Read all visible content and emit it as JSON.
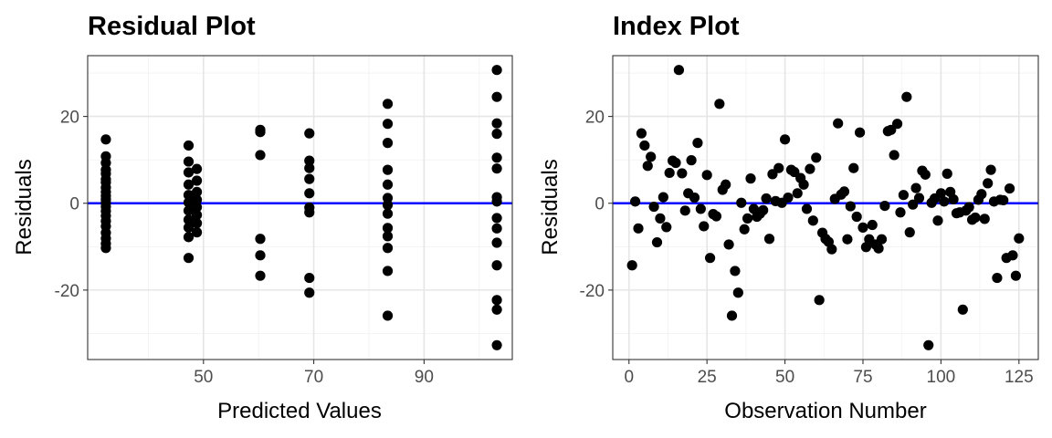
{
  "chart_data": [
    {
      "type": "scatter",
      "title": "Residual Plot",
      "xlabel": "Predicted Values",
      "ylabel": "Residuals",
      "xlim": [
        29,
        106
      ],
      "ylim": [
        -36,
        34
      ],
      "xticks": [
        50,
        70,
        90
      ],
      "yticks": [
        -20,
        0,
        20
      ],
      "xtick_labels": [
        "50",
        "70",
        "90"
      ],
      "ytick_labels": [
        "-20",
        "0",
        "20"
      ],
      "grid": true,
      "reference_line": {
        "y": 0,
        "color": "#0000ff"
      },
      "point_color": "#000000",
      "points": [
        {
          "x": 32.3,
          "y": 14.7
        },
        {
          "x": 32.3,
          "y": 10.8
        },
        {
          "x": 32.3,
          "y": 9.3
        },
        {
          "x": 32.3,
          "y": 7.7
        },
        {
          "x": 32.3,
          "y": 6.8
        },
        {
          "x": 32.3,
          "y": 5.5
        },
        {
          "x": 32.3,
          "y": 4.8
        },
        {
          "x": 32.3,
          "y": 3.6
        },
        {
          "x": 32.3,
          "y": 2.6
        },
        {
          "x": 32.3,
          "y": 1.7
        },
        {
          "x": 32.3,
          "y": 0.9
        },
        {
          "x": 32.3,
          "y": 0.1
        },
        {
          "x": 32.3,
          "y": -0.8
        },
        {
          "x": 32.3,
          "y": -1.8
        },
        {
          "x": 32.3,
          "y": -2.9
        },
        {
          "x": 32.3,
          "y": -4.1
        },
        {
          "x": 32.3,
          "y": -5.3
        },
        {
          "x": 32.3,
          "y": -6.8
        },
        {
          "x": 32.3,
          "y": -8.1
        },
        {
          "x": 32.3,
          "y": -9.3
        },
        {
          "x": 32.3,
          "y": -10.3
        },
        {
          "x": 47.3,
          "y": 13.3
        },
        {
          "x": 47.3,
          "y": 9.6
        },
        {
          "x": 47.3,
          "y": 7.1
        },
        {
          "x": 47.3,
          "y": 4.3
        },
        {
          "x": 47.3,
          "y": 1.9
        },
        {
          "x": 47.3,
          "y": 0.2
        },
        {
          "x": 47.3,
          "y": -1.7
        },
        {
          "x": 47.3,
          "y": -3.8
        },
        {
          "x": 47.3,
          "y": -5.6
        },
        {
          "x": 47.3,
          "y": -7.8
        },
        {
          "x": 47.3,
          "y": -12.6
        },
        {
          "x": 48.8,
          "y": 7.9
        },
        {
          "x": 48.8,
          "y": 5.2
        },
        {
          "x": 48.8,
          "y": 2.6
        },
        {
          "x": 48.8,
          "y": 0.8
        },
        {
          "x": 48.8,
          "y": -0.9
        },
        {
          "x": 48.8,
          "y": -2.7
        },
        {
          "x": 48.8,
          "y": -4.6
        },
        {
          "x": 48.8,
          "y": -6.7
        },
        {
          "x": 60.3,
          "y": 16.9
        },
        {
          "x": 60.3,
          "y": 16.4
        },
        {
          "x": 60.3,
          "y": 11.1
        },
        {
          "x": 60.3,
          "y": -8.2
        },
        {
          "x": 60.3,
          "y": -12.0
        },
        {
          "x": 60.3,
          "y": -16.7
        },
        {
          "x": 69.2,
          "y": 16.1
        },
        {
          "x": 69.2,
          "y": 9.8
        },
        {
          "x": 69.2,
          "y": 8.1
        },
        {
          "x": 69.2,
          "y": 5.6
        },
        {
          "x": 69.2,
          "y": 2.3
        },
        {
          "x": 69.2,
          "y": -1.0
        },
        {
          "x": 69.2,
          "y": -2.1
        },
        {
          "x": 69.2,
          "y": -17.2
        },
        {
          "x": 69.2,
          "y": -20.6
        },
        {
          "x": 83.4,
          "y": 22.9
        },
        {
          "x": 83.4,
          "y": 18.3
        },
        {
          "x": 83.4,
          "y": 13.9
        },
        {
          "x": 83.4,
          "y": 7.7
        },
        {
          "x": 83.4,
          "y": 4.3
        },
        {
          "x": 83.4,
          "y": 1.2
        },
        {
          "x": 83.4,
          "y": -0.4
        },
        {
          "x": 83.4,
          "y": -2.4
        },
        {
          "x": 83.4,
          "y": -5.7
        },
        {
          "x": 83.4,
          "y": -7.6
        },
        {
          "x": 83.4,
          "y": -10.3
        },
        {
          "x": 83.4,
          "y": -15.6
        },
        {
          "x": 83.4,
          "y": -25.9
        },
        {
          "x": 103.2,
          "y": 30.7
        },
        {
          "x": 103.2,
          "y": 24.5
        },
        {
          "x": 103.2,
          "y": 18.4
        },
        {
          "x": 103.2,
          "y": 16.0
        },
        {
          "x": 103.2,
          "y": 10.5
        },
        {
          "x": 103.2,
          "y": 8.0
        },
        {
          "x": 103.2,
          "y": 1.4
        },
        {
          "x": 103.2,
          "y": 0.4
        },
        {
          "x": 103.2,
          "y": -3.4
        },
        {
          "x": 103.2,
          "y": -5.8
        },
        {
          "x": 103.2,
          "y": -9.1
        },
        {
          "x": 103.2,
          "y": -14.3
        },
        {
          "x": 103.2,
          "y": -22.3
        },
        {
          "x": 103.2,
          "y": -24.5
        },
        {
          "x": 103.2,
          "y": -32.7
        }
      ]
    },
    {
      "type": "scatter",
      "title": "Index Plot",
      "xlabel": "Observation Number",
      "ylabel": "Residuals",
      "xlim": [
        -5.2,
        131.2
      ],
      "ylim": [
        -36,
        34
      ],
      "xticks": [
        0,
        25,
        50,
        75,
        100,
        125
      ],
      "yticks": [
        -20,
        0,
        20
      ],
      "xtick_labels": [
        "0",
        "25",
        "50",
        "75",
        "100",
        "125"
      ],
      "ytick_labels": [
        "-20",
        "0",
        "20"
      ],
      "grid": true,
      "reference_line": {
        "y": 0,
        "color": "#0000ff"
      },
      "point_color": "#000000",
      "points": [
        {
          "x": 1,
          "y": -14.3
        },
        {
          "x": 2,
          "y": 0.4
        },
        {
          "x": 3,
          "y": -5.8
        },
        {
          "x": 4,
          "y": 16.1
        },
        {
          "x": 5,
          "y": 13.3
        },
        {
          "x": 6,
          "y": 8.6
        },
        {
          "x": 7,
          "y": 10.7
        },
        {
          "x": 8,
          "y": -0.8
        },
        {
          "x": 9,
          "y": -9.0
        },
        {
          "x": 10,
          "y": -3.5
        },
        {
          "x": 11,
          "y": 1.4
        },
        {
          "x": 12,
          "y": -5.5
        },
        {
          "x": 13,
          "y": 7.0
        },
        {
          "x": 14,
          "y": 9.8
        },
        {
          "x": 15,
          "y": 9.3
        },
        {
          "x": 16,
          "y": 30.7
        },
        {
          "x": 17,
          "y": 6.9
        },
        {
          "x": 18,
          "y": -1.7
        },
        {
          "x": 19,
          "y": 2.3
        },
        {
          "x": 20,
          "y": 9.9
        },
        {
          "x": 21,
          "y": 1.3
        },
        {
          "x": 22,
          "y": 13.9
        },
        {
          "x": 23,
          "y": -1.3
        },
        {
          "x": 24,
          "y": -5.3
        },
        {
          "x": 25,
          "y": 6.5
        },
        {
          "x": 26,
          "y": -12.6
        },
        {
          "x": 27,
          "y": -2.5
        },
        {
          "x": 28,
          "y": -3.0
        },
        {
          "x": 29,
          "y": 22.9
        },
        {
          "x": 30,
          "y": 3.1
        },
        {
          "x": 31,
          "y": 4.3
        },
        {
          "x": 32,
          "y": -9.5
        },
        {
          "x": 33,
          "y": -25.9
        },
        {
          "x": 34,
          "y": -15.6
        },
        {
          "x": 35,
          "y": -20.6
        },
        {
          "x": 36,
          "y": 0.1
        },
        {
          "x": 37,
          "y": -6.0
        },
        {
          "x": 38,
          "y": -3.5
        },
        {
          "x": 39,
          "y": 5.7
        },
        {
          "x": 40,
          "y": -1.3
        },
        {
          "x": 41,
          "y": -3.1
        },
        {
          "x": 42,
          "y": -2.4
        },
        {
          "x": 43,
          "y": -1.6
        },
        {
          "x": 44,
          "y": 1.1
        },
        {
          "x": 45,
          "y": -8.2
        },
        {
          "x": 46,
          "y": 6.7
        },
        {
          "x": 47,
          "y": 0.5
        },
        {
          "x": 48,
          "y": 8.1
        },
        {
          "x": 49,
          "y": 0.1
        },
        {
          "x": 50,
          "y": 14.7
        },
        {
          "x": 51,
          "y": 1.3
        },
        {
          "x": 52,
          "y": 7.7
        },
        {
          "x": 53,
          "y": 7.2
        },
        {
          "x": 54,
          "y": 2.3
        },
        {
          "x": 55,
          "y": 5.8
        },
        {
          "x": 56,
          "y": 4.3
        },
        {
          "x": 57,
          "y": -1.3
        },
        {
          "x": 58,
          "y": 7.9
        },
        {
          "x": 59,
          "y": -4.0
        },
        {
          "x": 60,
          "y": 10.5
        },
        {
          "x": 61,
          "y": -22.3
        },
        {
          "x": 62,
          "y": -6.8
        },
        {
          "x": 63,
          "y": -8.2
        },
        {
          "x": 64,
          "y": -8.9
        },
        {
          "x": 65,
          "y": -10.6
        },
        {
          "x": 66,
          "y": 1.0
        },
        {
          "x": 67,
          "y": 18.4
        },
        {
          "x": 68,
          "y": 2.0
        },
        {
          "x": 69,
          "y": 2.7
        },
        {
          "x": 70,
          "y": -8.3
        },
        {
          "x": 71,
          "y": -0.7
        },
        {
          "x": 72,
          "y": 8.1
        },
        {
          "x": 73,
          "y": -3.1
        },
        {
          "x": 74,
          "y": 16.3
        },
        {
          "x": 75,
          "y": -5.6
        },
        {
          "x": 76,
          "y": -10.1
        },
        {
          "x": 77,
          "y": -8.3
        },
        {
          "x": 78,
          "y": -5.0
        },
        {
          "x": 79,
          "y": -9.5
        },
        {
          "x": 80,
          "y": -10.4
        },
        {
          "x": 81,
          "y": -8.3
        },
        {
          "x": 82,
          "y": -0.6
        },
        {
          "x": 83,
          "y": 16.6
        },
        {
          "x": 84,
          "y": 16.9
        },
        {
          "x": 85,
          "y": 11.1
        },
        {
          "x": 86,
          "y": 18.3
        },
        {
          "x": 87,
          "y": -2.1
        },
        {
          "x": 88,
          "y": 1.9
        },
        {
          "x": 89,
          "y": 24.5
        },
        {
          "x": 90,
          "y": -6.7
        },
        {
          "x": 91,
          "y": -0.3
        },
        {
          "x": 92,
          "y": 3.5
        },
        {
          "x": 93,
          "y": 1.2
        },
        {
          "x": 94,
          "y": 7.5
        },
        {
          "x": 95,
          "y": 6.6
        },
        {
          "x": 96,
          "y": -32.7
        },
        {
          "x": 97,
          "y": 0.1
        },
        {
          "x": 98,
          "y": 1.1
        },
        {
          "x": 99,
          "y": -4.0
        },
        {
          "x": 100,
          "y": 2.3
        },
        {
          "x": 101,
          "y": 0.4
        },
        {
          "x": 102,
          "y": 6.8
        },
        {
          "x": 103,
          "y": 2.6
        },
        {
          "x": 104,
          "y": 0.9
        },
        {
          "x": 105,
          "y": -2.3
        },
        {
          "x": 106,
          "y": -2.1
        },
        {
          "x": 107,
          "y": -24.5
        },
        {
          "x": 108,
          "y": -1.7
        },
        {
          "x": 109,
          "y": -0.9
        },
        {
          "x": 110,
          "y": -3.8
        },
        {
          "x": 111,
          "y": -3.3
        },
        {
          "x": 112,
          "y": 0.8
        },
        {
          "x": 113,
          "y": 2.1
        },
        {
          "x": 114,
          "y": -3.6
        },
        {
          "x": 115,
          "y": 4.6
        },
        {
          "x": 116,
          "y": 7.7
        },
        {
          "x": 117,
          "y": 0.4
        },
        {
          "x": 118,
          "y": -17.2
        },
        {
          "x": 119,
          "y": 0.8
        },
        {
          "x": 120,
          "y": 0.7
        },
        {
          "x": 121,
          "y": -12.6
        },
        {
          "x": 122,
          "y": 3.4
        },
        {
          "x": 123,
          "y": -12.0
        },
        {
          "x": 124,
          "y": -16.7
        },
        {
          "x": 125,
          "y": -8.1
        }
      ]
    }
  ]
}
